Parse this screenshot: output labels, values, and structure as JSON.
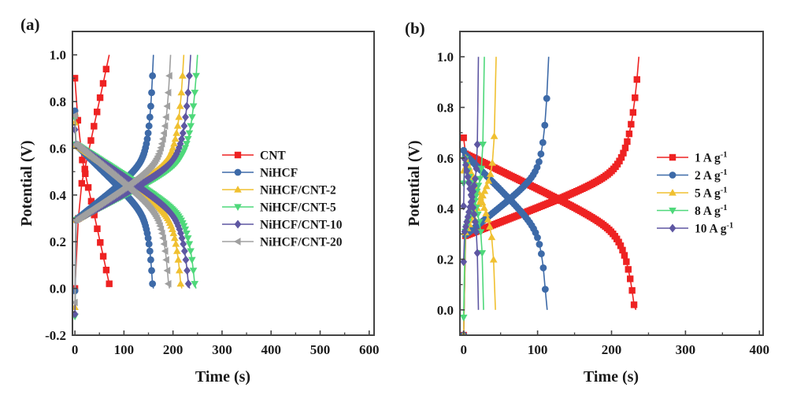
{
  "chart_data": [
    {
      "panel": "(a)",
      "type": "line",
      "title": "",
      "xlabel": "Time (s)",
      "ylabel": "Potential (V)",
      "xlim": [
        -5,
        610
      ],
      "ylim": [
        -0.2,
        1.1
      ],
      "xticks": [
        0,
        100,
        200,
        300,
        400,
        500,
        600
      ],
      "xtick_labels": [
        "0",
        "100",
        "200",
        "300",
        "400",
        "500",
        "600"
      ],
      "yticks": [
        -0.2,
        0.0,
        0.2,
        0.4,
        0.6,
        0.8,
        1.0
      ],
      "ytick_labels": [
        "-0.2",
        "0.0",
        "0.2",
        "0.4",
        "0.6",
        "0.8",
        "1.0"
      ],
      "grid": false,
      "legend_position": "right",
      "series": [
        {
          "name": "CNT",
          "color": "#ee2222",
          "marker": "square",
          "t_charge": 70,
          "t_discharge": 70,
          "v_start": 0.0,
          "v_ir_top": 0.9,
          "v_plateau_hi": 0.72,
          "v_plateau_lo": 0.3
        },
        {
          "name": "NiHCF",
          "color": "#3d6aa8",
          "marker": "circle",
          "t_charge": 160,
          "t_discharge": 160,
          "v_start": -0.01,
          "v_ir_top": 0.76
        },
        {
          "name": "NiHCF/CNT-2",
          "color": "#f0c030",
          "marker": "triangle-up",
          "t_charge": 222,
          "t_discharge": 218,
          "v_start": -0.08,
          "v_ir_top": 0.71
        },
        {
          "name": "NiHCF/CNT-5",
          "color": "#4ed87a",
          "marker": "triangle-down",
          "t_charge": 250,
          "t_discharge": 247,
          "v_start": -0.12,
          "v_ir_top": 0.73
        },
        {
          "name": "NiHCF/CNT-10",
          "color": "#5e57a2",
          "marker": "diamond",
          "t_charge": 236,
          "t_discharge": 234,
          "v_start": -0.11,
          "v_ir_top": 0.68
        },
        {
          "name": "NiHCF/CNT-20",
          "color": "#a0a0a0",
          "marker": "triangle-left",
          "t_charge": 195,
          "t_discharge": 193,
          "v_start": -0.06,
          "v_ir_top": 0.74
        }
      ]
    },
    {
      "panel": "(b)",
      "type": "line",
      "title": "",
      "xlabel": "Time (s)",
      "ylabel": "Potential (V)",
      "xlim": [
        -5,
        405
      ],
      "ylim": [
        -0.1,
        1.1
      ],
      "xticks": [
        0,
        100,
        200,
        300,
        400
      ],
      "xtick_labels": [
        "0",
        "100",
        "200",
        "300",
        "400"
      ],
      "yticks": [
        0.0,
        0.2,
        0.4,
        0.6,
        0.8,
        1.0
      ],
      "ytick_labels": [
        "0.0",
        "0.2",
        "0.4",
        "0.6",
        "0.8",
        "1.0"
      ],
      "grid": false,
      "legend_position": "right",
      "series": [
        {
          "name": "1 A g-1",
          "label_main": "1 A g",
          "label_sup": "-1",
          "color": "#ee2222",
          "marker": "square",
          "t_charge": 237,
          "t_discharge": 233,
          "v_start": -0.1,
          "v_ir_top": 0.68
        },
        {
          "name": "2 A g-1",
          "label_main": "2 A g",
          "label_sup": "-1",
          "color": "#3d6aa8",
          "marker": "circle",
          "t_charge": 115,
          "t_discharge": 113,
          "v_start": -0.1,
          "v_ir_top": 0.63
        },
        {
          "name": "5 A g-1",
          "label_main": "5 A g",
          "label_sup": "-1",
          "color": "#f0c030",
          "marker": "triangle-up",
          "t_charge": 44,
          "t_discharge": 43,
          "v_start": -0.1,
          "v_ir_top": 0.55
        },
        {
          "name": "8 A g-1",
          "label_main": "8 A g",
          "label_sup": "-1",
          "color": "#4ed87a",
          "marker": "triangle-down",
          "t_charge": 28,
          "t_discharge": 27,
          "v_start": -0.03,
          "v_ir_top": 0.5
        },
        {
          "name": "10 A g-1",
          "label_main": "10 A g",
          "label_sup": "-1",
          "color": "#5e57a2",
          "marker": "diamond",
          "t_charge": 20,
          "t_discharge": 20,
          "v_start": 0.19,
          "v_ir_top": 0.41
        }
      ]
    }
  ]
}
